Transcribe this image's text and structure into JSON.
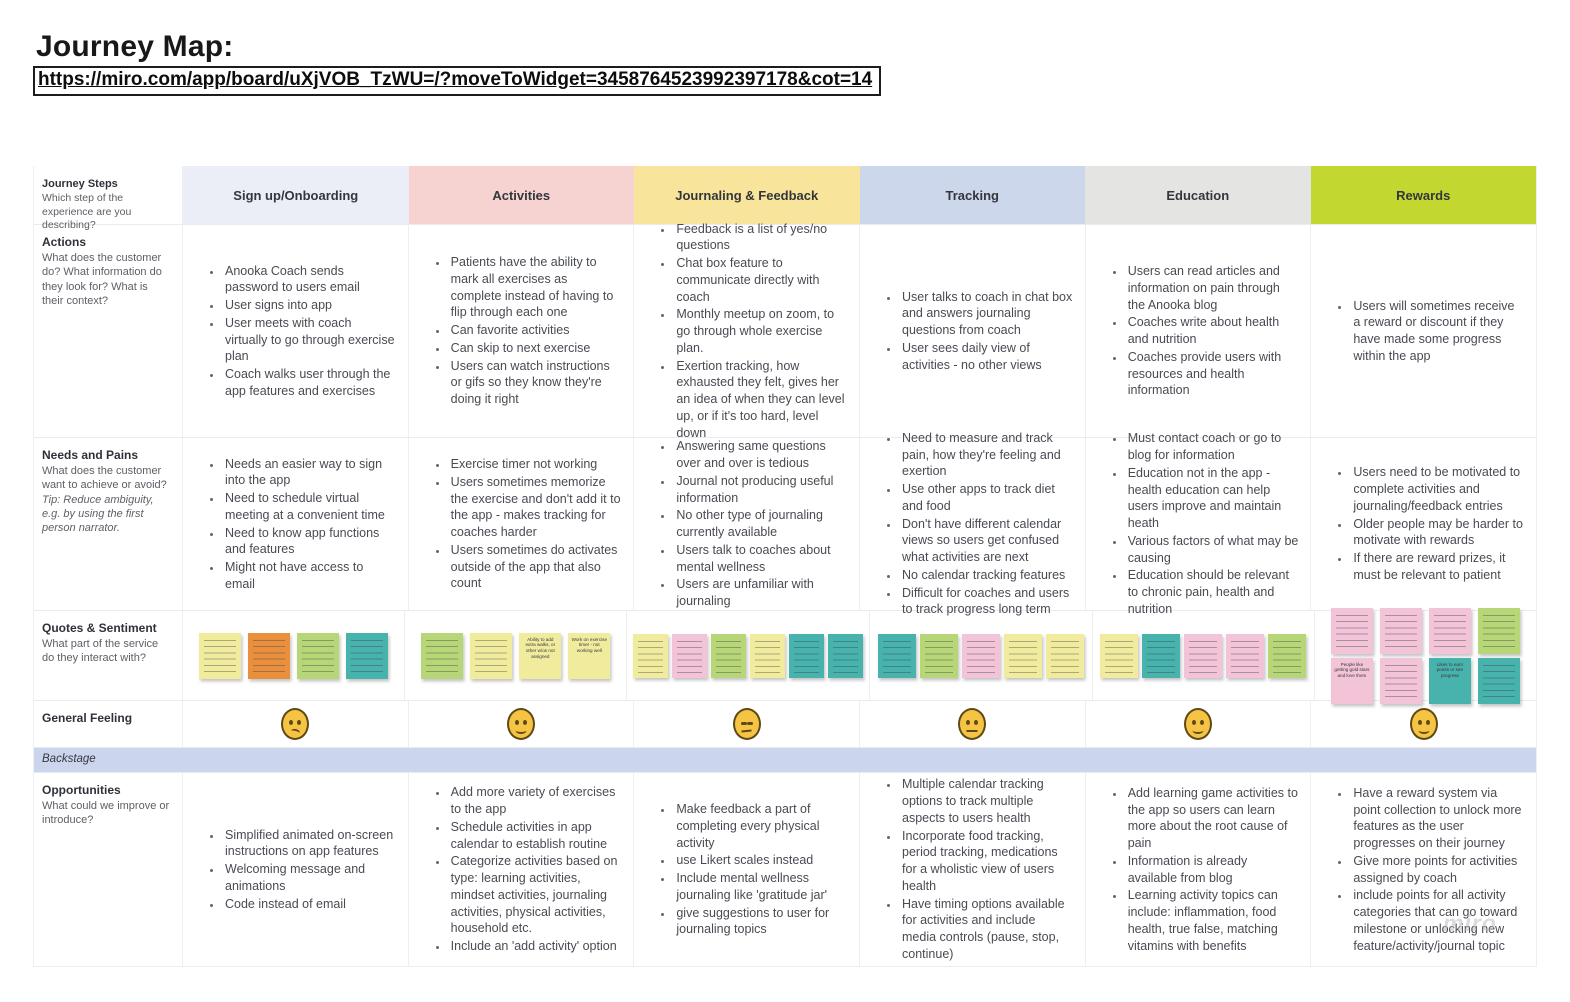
{
  "page": {
    "title": "Journey Map:",
    "url": "https://miro.com/app/board/uXjVOB_TzWU=/?moveToWidget=3458764523992397178&cot=14",
    "watermark": "miro"
  },
  "columns": [
    {
      "id": "signup",
      "label": "Sign up/Onboarding",
      "header_bg": "#ebeef6"
    },
    {
      "id": "activities",
      "label": "Activities",
      "header_bg": "#f6d3d1"
    },
    {
      "id": "journaling",
      "label": "Journaling & Feedback",
      "header_bg": "#f8e59b"
    },
    {
      "id": "tracking",
      "label": "Tracking",
      "header_bg": "#cdd7ec"
    },
    {
      "id": "education",
      "label": "Education",
      "header_bg": "#e4e4e2"
    },
    {
      "id": "rewards",
      "label": "Rewards",
      "header_bg": "#c2d831"
    }
  ],
  "row_labels": {
    "journey_steps": {
      "title": "Journey Steps",
      "desc": "Which step of the experience are you describing?"
    },
    "actions": {
      "title": "Actions",
      "desc": "What does the customer do? What information do they look for? What is their context?"
    },
    "needs": {
      "title": "Needs and Pains",
      "desc": "What does the customer want to achieve or avoid?",
      "tip": "Tip: Reduce ambiguity, e.g. by using the first person narrator."
    },
    "quotes": {
      "title": "Quotes & Sentiment",
      "desc": "What part of the service do they interact with?"
    },
    "feeling": {
      "title": "General Feeling"
    },
    "backstage": {
      "title": "Backstage"
    },
    "opportunities": {
      "title": "Opportunities",
      "desc": "What could we improve or introduce?"
    }
  },
  "actions": {
    "signup": [
      "Anooka Coach sends password to users email",
      "User signs into app",
      "User meets with coach virtually to go through exercise plan",
      "Coach walks user through the app features and exercises"
    ],
    "activities": [
      "Patients have the ability to mark all exercises as complete instead of having to flip through each one",
      "Can favorite activities",
      "Can skip to next exercise",
      "Users can watch instructions or gifs so they know they're doing it right"
    ],
    "journaling": [
      "Feedback is a list of yes/no questions",
      "Chat box feature to communicate directly with coach",
      "Monthly meetup on zoom, to go through whole exercise plan.",
      "Exertion tracking, how exhausted they felt, gives her an idea of when they can level up, or if it's too hard, level down"
    ],
    "tracking": [
      "User talks to coach in chat box and answers journaling questions from coach",
      "User sees daily view of activities - no other views"
    ],
    "education": [
      "Users can read articles and information on pain through the Anooka blog",
      "Coaches write about health and nutrition",
      "Coaches provide users with resources and health information"
    ],
    "rewards": [
      "Users will sometimes receive a reward or discount if they have made some progress within the app"
    ]
  },
  "needs": {
    "signup": [
      "Needs an easier way to sign into the app",
      "Need to schedule virtual meeting at a convenient time",
      "Need to know app functions and features",
      "Might not have access to email"
    ],
    "activities": [
      "Exercise timer not working",
      "Users sometimes memorize the exercise and don't add it to the app - makes tracking for coaches harder",
      "Users sometimes do activates outside of the app that also count"
    ],
    "journaling": [
      "Answering same questions over and over is tedious",
      "Journal not producing useful information",
      "No other type of journaling currently available",
      "Users talk to coaches about mental wellness",
      "Users are unfamiliar with journaling"
    ],
    "tracking": [
      "Need to measure and track pain, how they're feeling and exertion",
      "Use other apps to track diet and food",
      "Don't have different calendar views so users get confused what activities are next",
      "No calendar tracking features",
      "Difficult for coaches and users to track progress long term"
    ],
    "education": [
      "Must contact coach or go to blog for information",
      "Education not in the app - health education can help users improve and maintain heath",
      "Various factors of what may be causing",
      "Education should be relevant to chronic pain, health and nutrition"
    ],
    "rewards": [
      "Users need to be motivated to complete activities and journaling/feedback entries",
      "Older people may be harder to motivate with rewards",
      "If there are reward prizes, it must be relevant to patient"
    ]
  },
  "quotes": {
    "signup": [
      [
        {
          "color": "yellow",
          "text": ""
        },
        {
          "color": "orange",
          "text": ""
        },
        {
          "color": "green",
          "text": ""
        },
        {
          "color": "teal",
          "text": ""
        }
      ]
    ],
    "activities": [
      [
        {
          "color": "green",
          "text": ""
        },
        {
          "color": "yellow",
          "text": ""
        },
        {
          "color": "yellow",
          "text": "Ability to add extra walks, or other w/os not assigned"
        },
        {
          "color": "yellow",
          "text": "Work on exercise timer - not working well"
        }
      ]
    ],
    "journaling": [
      [
        {
          "color": "yellow",
          "text": ""
        },
        {
          "color": "pink",
          "text": ""
        },
        {
          "color": "green",
          "text": ""
        },
        {
          "color": "yellow",
          "text": ""
        },
        {
          "color": "teal",
          "text": ""
        },
        {
          "color": "teal",
          "text": ""
        }
      ]
    ],
    "tracking": [
      [
        {
          "color": "teal",
          "text": ""
        },
        {
          "color": "green",
          "text": ""
        },
        {
          "color": "pink",
          "text": ""
        },
        {
          "color": "yellow",
          "text": ""
        },
        {
          "color": "yellow",
          "text": ""
        }
      ]
    ],
    "education": [
      [
        {
          "color": "yellow",
          "text": ""
        },
        {
          "color": "teal",
          "text": ""
        },
        {
          "color": "pink",
          "text": ""
        },
        {
          "color": "pink",
          "text": ""
        },
        {
          "color": "green",
          "text": ""
        }
      ]
    ],
    "rewards": [
      [
        {
          "color": "pink",
          "text": ""
        },
        {
          "color": "pink",
          "text": ""
        },
        {
          "color": "pink",
          "text": ""
        },
        {
          "color": "green",
          "text": ""
        }
      ],
      [
        {
          "color": "pink",
          "text": "People like getting gold stars and love them"
        },
        {
          "color": "pink",
          "text": ""
        },
        {
          "color": "teal",
          "text": "Likes to earn points or see progress"
        },
        {
          "color": "teal",
          "text": ""
        }
      ]
    ]
  },
  "feeling": [
    {
      "column": "signup",
      "emoji": "confused-face"
    },
    {
      "column": "activities",
      "emoji": "slightly-smiling-face"
    },
    {
      "column": "journaling",
      "emoji": "unamused-face"
    },
    {
      "column": "tracking",
      "emoji": "neutral-face"
    },
    {
      "column": "education",
      "emoji": "slightly-smiling-face"
    },
    {
      "column": "rewards",
      "emoji": "slightly-smiling-face"
    }
  ],
  "opportunities": {
    "signup": [
      "Simplified animated on-screen instructions on app features",
      "Welcoming message and animations",
      "Code instead of email"
    ],
    "activities": [
      "Add more variety of exercises to the app",
      "Schedule activities in app calendar to establish routine",
      "Categorize activities based on type: learning activities, mindset activities, journaling activities, physical activities, household etc.",
      "Include an 'add activity' option"
    ],
    "journaling": [
      "Make feedback a part of completing every physical activity",
      "use Likert scales instead",
      "Include mental wellness journaling like 'gratitude jar'",
      "give suggestions to user for journaling topics"
    ],
    "tracking": [
      "Multiple calendar tracking options to track multiple aspects to users health",
      "Incorporate food tracking, period tracking, medications for a wholistic view of users health",
      "Have timing options available for activities and include media controls (pause, stop, continue)"
    ],
    "education": [
      "Add learning game activities to the app so users can learn more about the root cause of pain",
      "Information is already available from blog",
      "Learning activity topics can include: inflammation, food health, true false, matching vitamins with benefits"
    ],
    "rewards": [
      "Have a reward system via point collection to unlock more features as the user progresses on their journey",
      "Give more points for activities assigned by coach",
      "include points for all activity categories that can go toward milestone or unlocking new feature/activity/journal topic"
    ]
  },
  "palette": {
    "sticky_yellow": "#f1eb9e",
    "sticky_orange": "#e98f3e",
    "sticky_green": "#b7d677",
    "sticky_teal": "#48b2ac",
    "sticky_pink": "#f3c3d8",
    "backstage_band": "#ccd5ee",
    "emoji_fill": "#f6c445"
  }
}
